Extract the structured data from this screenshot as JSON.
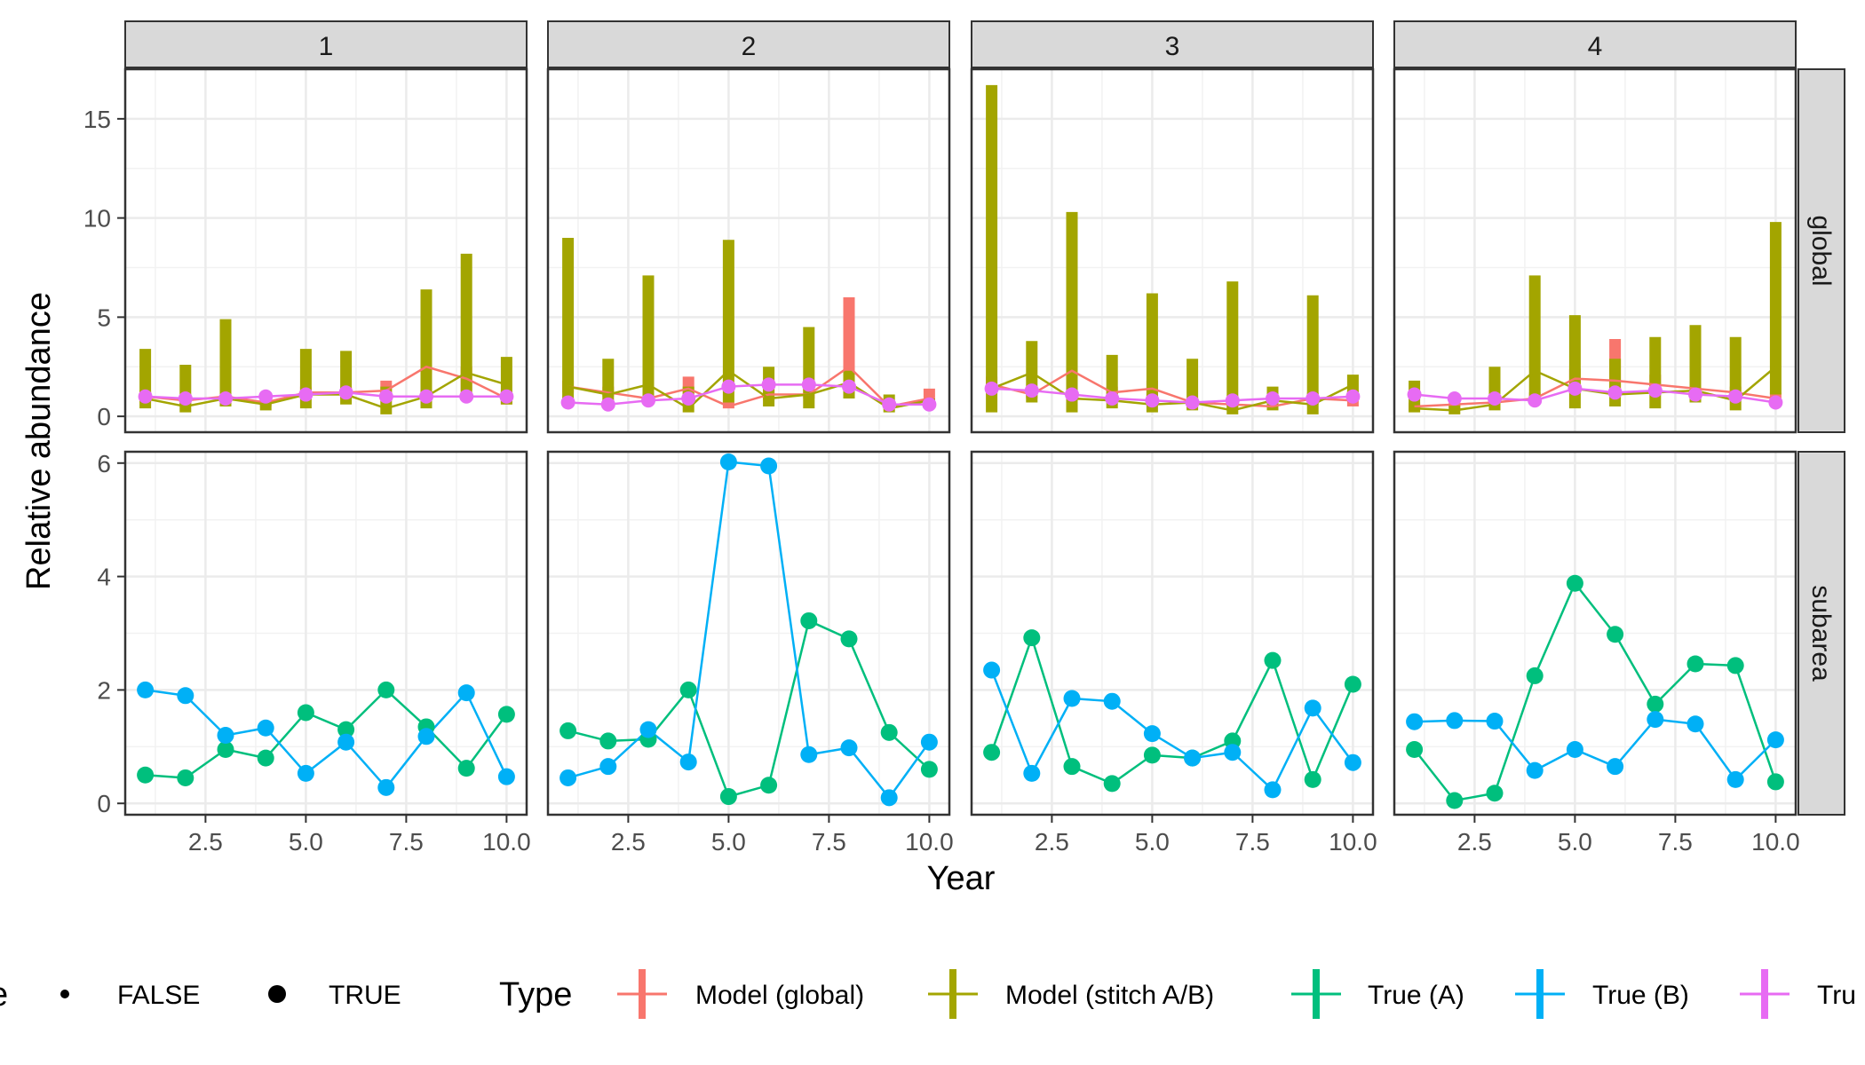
{
  "chart_data": {
    "type": "line",
    "xlabel": "Year",
    "ylabel": "Relative abundance",
    "xlim": [
      0.5,
      10.5
    ],
    "x_ticks": [
      "2.5",
      "5.0",
      "7.5",
      "10.0"
    ],
    "x_tick_values": [
      2.5,
      5.0,
      7.5,
      10.0
    ],
    "grid": true,
    "legend_position": "bottom",
    "columns": [
      "1",
      "2",
      "3",
      "4"
    ],
    "rows": [
      {
        "label": "global",
        "ylim": [
          -0.8,
          17.5
        ],
        "ticks": [
          "0",
          "5",
          "10",
          "15"
        ],
        "tick_values": [
          0,
          5,
          10,
          15
        ]
      },
      {
        "label": "subarea",
        "ylim": [
          -0.2,
          6.2
        ],
        "ticks": [
          "0",
          "2",
          "4",
          "6"
        ],
        "tick_values": [
          0,
          2,
          4,
          6
        ]
      }
    ],
    "colors": {
      "model_global": "#F8766D",
      "model_stitch": "#A3A500",
      "true_a": "#00BF7D",
      "true_b": "#00B0F6",
      "true_global": "#E76BF3"
    },
    "legend": {
      "size_title": "e",
      "size_items": [
        "FALSE",
        "TRUE"
      ],
      "type_title": "Type",
      "type_items": [
        "Model (global)",
        "Model (stitch A/B)",
        "True (A)",
        "True (B)",
        "Tru"
      ]
    },
    "global": [
      {
        "model_global": {
          "est": [
            1.0,
            0.8,
            1.0,
            0.7,
            1.2,
            1.2,
            1.3,
            2.5,
            1.9,
            0.9
          ],
          "lo": [
            0.7,
            0.6,
            0.8,
            0.5,
            0.9,
            0.9,
            0.9,
            1.8,
            1.3,
            0.6
          ],
          "hi": [
            1.3,
            1.0,
            1.3,
            0.9,
            1.5,
            1.5,
            1.8,
            3.2,
            2.5,
            1.3
          ]
        },
        "model_stitch": {
          "est": [
            0.9,
            0.5,
            0.9,
            0.6,
            1.1,
            1.1,
            0.4,
            1.0,
            2.2,
            1.6
          ],
          "lo": [
            0.4,
            0.2,
            0.5,
            0.3,
            0.4,
            0.6,
            0.1,
            0.4,
            1.0,
            0.6
          ],
          "hi": [
            3.4,
            2.6,
            4.9,
            1.0,
            3.4,
            3.3,
            1.5,
            6.4,
            8.2,
            3.0
          ]
        },
        "true_global": [
          1.0,
          0.9,
          0.9,
          1.0,
          1.1,
          1.2,
          1.0,
          1.0,
          1.0,
          1.0
        ]
      },
      {
        "model_global": {
          "est": [
            1.5,
            1.2,
            0.9,
            1.4,
            0.5,
            1.1,
            1.1,
            2.5,
            0.5,
            0.9
          ],
          "lo": [
            1.2,
            1.0,
            0.7,
            1.0,
            0.4,
            0.8,
            0.9,
            1.8,
            0.4,
            0.6
          ],
          "hi": [
            1.8,
            1.5,
            1.1,
            2.0,
            0.7,
            1.4,
            1.5,
            6.0,
            0.7,
            1.4
          ]
        },
        "model_stitch": {
          "est": [
            1.5,
            1.1,
            1.6,
            0.4,
            2.3,
            0.9,
            1.1,
            1.7,
            0.4,
            0.8
          ],
          "lo": [
            0.7,
            0.6,
            0.7,
            0.2,
            0.7,
            0.5,
            0.4,
            0.9,
            0.2,
            0.4
          ],
          "hi": [
            9.0,
            2.9,
            7.1,
            1.5,
            8.9,
            2.5,
            4.5,
            2.3,
            1.1,
            0.9
          ]
        },
        "true_global": [
          0.7,
          0.6,
          0.8,
          0.9,
          1.5,
          1.6,
          1.6,
          1.5,
          0.6,
          0.6
        ]
      },
      {
        "model_global": {
          "est": [
            1.6,
            1.1,
            2.3,
            1.2,
            1.4,
            0.7,
            0.6,
            0.5,
            0.9,
            0.8
          ],
          "lo": [
            1.2,
            0.9,
            1.8,
            0.9,
            1.0,
            0.5,
            0.4,
            0.4,
            0.6,
            0.5
          ],
          "hi": [
            2.0,
            1.5,
            2.8,
            1.5,
            1.8,
            0.9,
            0.8,
            0.7,
            1.2,
            1.3
          ]
        },
        "model_stitch": {
          "est": [
            1.4,
            2.2,
            0.9,
            0.8,
            0.6,
            0.7,
            0.3,
            0.8,
            0.6,
            1.6
          ],
          "lo": [
            0.2,
            0.7,
            0.2,
            0.4,
            0.2,
            0.3,
            0.1,
            0.3,
            0.1,
            0.8
          ],
          "hi": [
            16.7,
            3.8,
            10.3,
            3.1,
            6.2,
            2.9,
            6.8,
            1.5,
            6.1,
            2.1
          ]
        },
        "true_global": [
          1.4,
          1.3,
          1.1,
          0.9,
          0.8,
          0.7,
          0.8,
          0.9,
          0.9,
          1.0
        ]
      },
      {
        "model_global": {
          "est": [
            0.5,
            0.6,
            0.7,
            0.9,
            1.9,
            1.8,
            1.6,
            1.4,
            1.2,
            0.9
          ],
          "lo": [
            0.3,
            0.4,
            0.5,
            0.6,
            1.4,
            1.3,
            1.1,
            1.0,
            0.9,
            0.6
          ],
          "hi": [
            0.7,
            0.8,
            0.9,
            1.2,
            2.4,
            3.9,
            2.1,
            1.8,
            1.5,
            1.2
          ]
        },
        "model_stitch": {
          "est": [
            0.4,
            0.3,
            0.6,
            2.3,
            1.4,
            1.1,
            1.2,
            1.3,
            0.8,
            2.5
          ],
          "lo": [
            0.2,
            0.1,
            0.3,
            0.9,
            0.4,
            0.5,
            0.4,
            0.7,
            0.3,
            1.1
          ],
          "hi": [
            1.8,
            0.6,
            2.5,
            7.1,
            5.1,
            2.9,
            4.0,
            4.6,
            4.0,
            9.8
          ]
        },
        "true_global": [
          1.1,
          0.9,
          0.9,
          0.8,
          1.4,
          1.2,
          1.3,
          1.1,
          1.0,
          0.7
        ]
      }
    ],
    "subarea": [
      {
        "true_a": [
          0.5,
          0.45,
          0.95,
          0.8,
          1.6,
          1.3,
          2.0,
          1.35,
          0.62,
          1.57
        ],
        "true_b": [
          2.0,
          1.9,
          1.2,
          1.33,
          0.53,
          1.08,
          0.28,
          1.18,
          1.95,
          0.47
        ]
      },
      {
        "true_a": [
          1.28,
          1.1,
          1.13,
          2.0,
          0.12,
          0.32,
          3.22,
          2.9,
          1.25,
          0.6
        ],
        "true_b": [
          0.45,
          0.65,
          1.3,
          0.73,
          6.02,
          5.95,
          0.86,
          0.98,
          0.1,
          1.08
        ]
      },
      {
        "true_a": [
          0.9,
          2.92,
          0.65,
          0.35,
          0.85,
          0.8,
          1.1,
          2.52,
          0.42,
          2.1
        ],
        "true_b": [
          2.35,
          0.53,
          1.85,
          1.8,
          1.23,
          0.8,
          0.9,
          0.24,
          1.68,
          0.72
        ]
      },
      {
        "true_a": [
          0.95,
          0.05,
          0.18,
          2.25,
          3.88,
          2.98,
          1.75,
          2.46,
          2.43,
          0.38
        ],
        "true_b": [
          1.44,
          1.46,
          1.45,
          0.58,
          0.95,
          0.65,
          1.48,
          1.4,
          0.42,
          1.12
        ]
      }
    ]
  }
}
